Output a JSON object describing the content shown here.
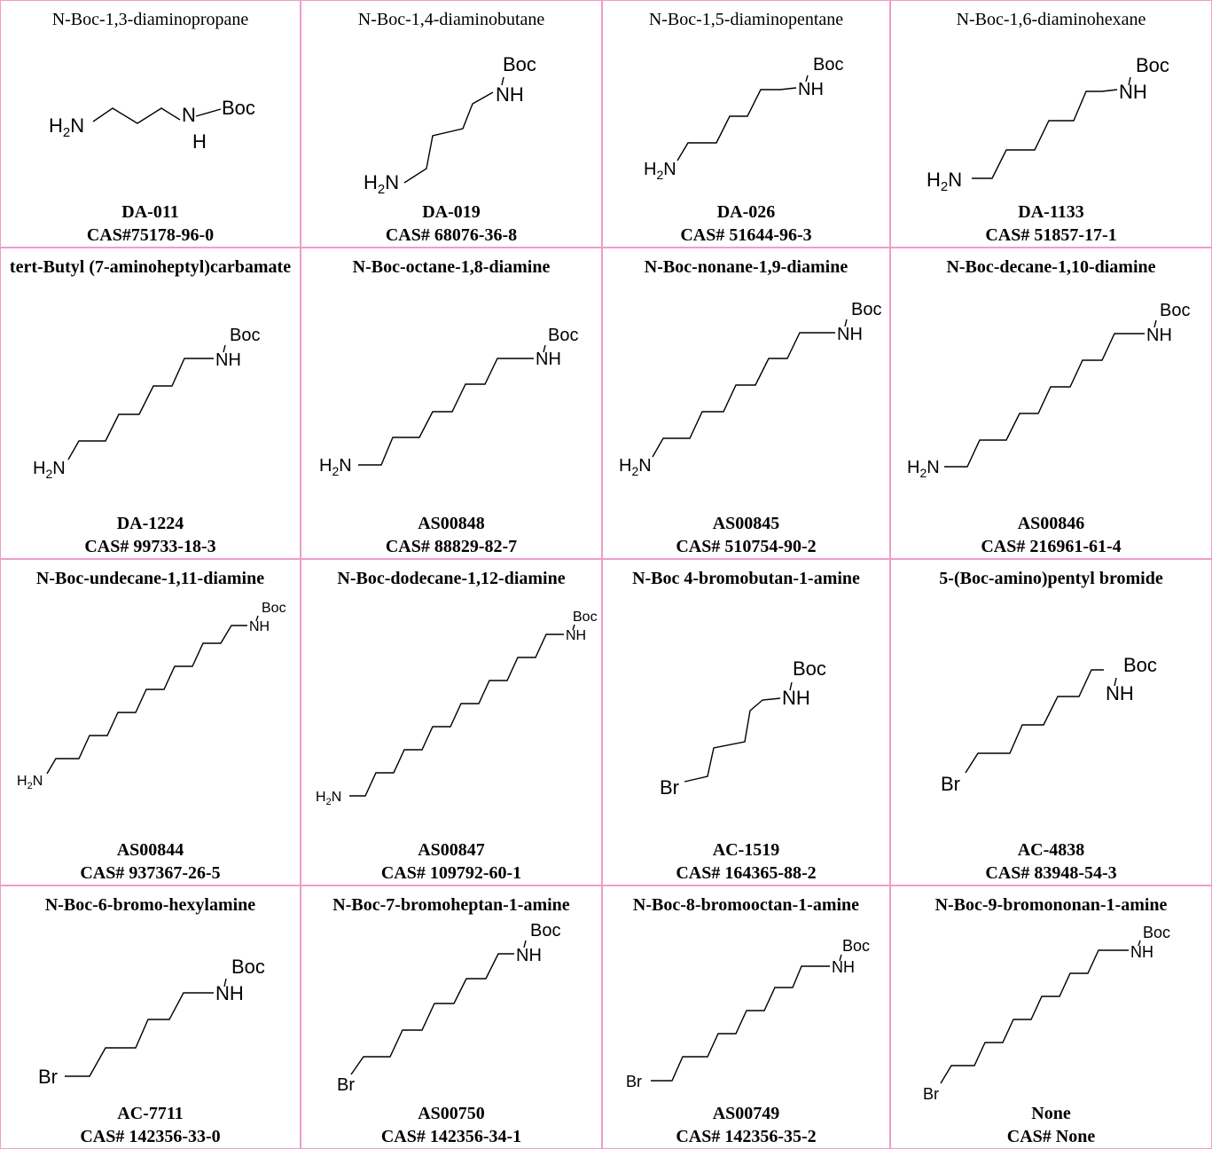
{
  "compounds": [
    {
      "name": "N-Boc-1,3-diaminopropane",
      "code": "DA-011",
      "cas": "CAS#75178-96-0",
      "amine": "H2N",
      "carbons": 3
    },
    {
      "name": "N-Boc-1,4-diaminobutane",
      "code": "DA-019",
      "cas": "CAS# 68076-36-8",
      "amine": "H2N",
      "carbons": 4
    },
    {
      "name": "N-Boc-1,5-diaminopentane",
      "code": "DA-026",
      "cas": "CAS# 51644-96-3",
      "amine": "H2N",
      "carbons": 5
    },
    {
      "name": "N-Boc-1,6-diaminohexane",
      "code": "DA-1133",
      "cas": "CAS# 51857-17-1",
      "amine": "H2N",
      "carbons": 6
    },
    {
      "name": "tert-Butyl (7-aminoheptyl)carbamate",
      "code": "DA-1224",
      "cas": "CAS# 99733-18-3",
      "amine": "H2N",
      "carbons": 7
    },
    {
      "name": "N-Boc-octane-1,8-diamine",
      "code": "AS00848",
      "cas": "CAS# 88829-82-7",
      "amine": "H2N",
      "carbons": 8
    },
    {
      "name": "N-Boc-nonane-1,9-diamine",
      "code": "AS00845",
      "cas": "CAS# 510754-90-2",
      "amine": "H2N",
      "carbons": 9
    },
    {
      "name": "N-Boc-decane-1,10-diamine",
      "code": "AS00846",
      "cas": "CAS# 216961-61-4",
      "amine": "H2N",
      "carbons": 10
    },
    {
      "name": "N-Boc-undecane-1,11-diamine",
      "code": "AS00844",
      "cas": "CAS# 937367-26-5",
      "amine": "H2N",
      "carbons": 11
    },
    {
      "name": "N-Boc-dodecane-1,12-diamine",
      "code": "AS00847",
      "cas": "CAS# 109792-60-1",
      "amine": "H2N",
      "carbons": 12
    },
    {
      "name": "N-Boc 4-bromobutan-1-amine",
      "code": "AC-1519",
      "cas": "CAS# 164365-88-2",
      "amine": "Br",
      "carbons": 4
    },
    {
      "name": "5-(Boc-amino)pentyl bromide",
      "code": "AC-4838",
      "cas": "CAS# 83948-54-3",
      "amine": "Br",
      "carbons": 5
    },
    {
      "name": "N-Boc-6-bromo-hexylamine",
      "code": "AC-7711",
      "cas": "CAS# 142356-33-0",
      "amine": "Br",
      "carbons": 6
    },
    {
      "name": "N-Boc-7-bromoheptan-1-amine",
      "code": "AS00750",
      "cas": "CAS# 142356-34-1",
      "amine": "Br",
      "carbons": 7
    },
    {
      "name": "N-Boc-8-bromooctan-1-amine",
      "code": "AS00749",
      "cas": "CAS# 142356-35-2",
      "amine": "Br",
      "carbons": 8
    },
    {
      "name": "N-Boc-9-bromononan-1-amine",
      "code": "None",
      "cas": "CAS# None",
      "amine": "Br",
      "carbons": 9
    }
  ],
  "labels": {
    "boc": "Boc",
    "nh": "NH",
    "n": "N",
    "h": "H"
  },
  "colors": {
    "border": "#f09cc8"
  }
}
